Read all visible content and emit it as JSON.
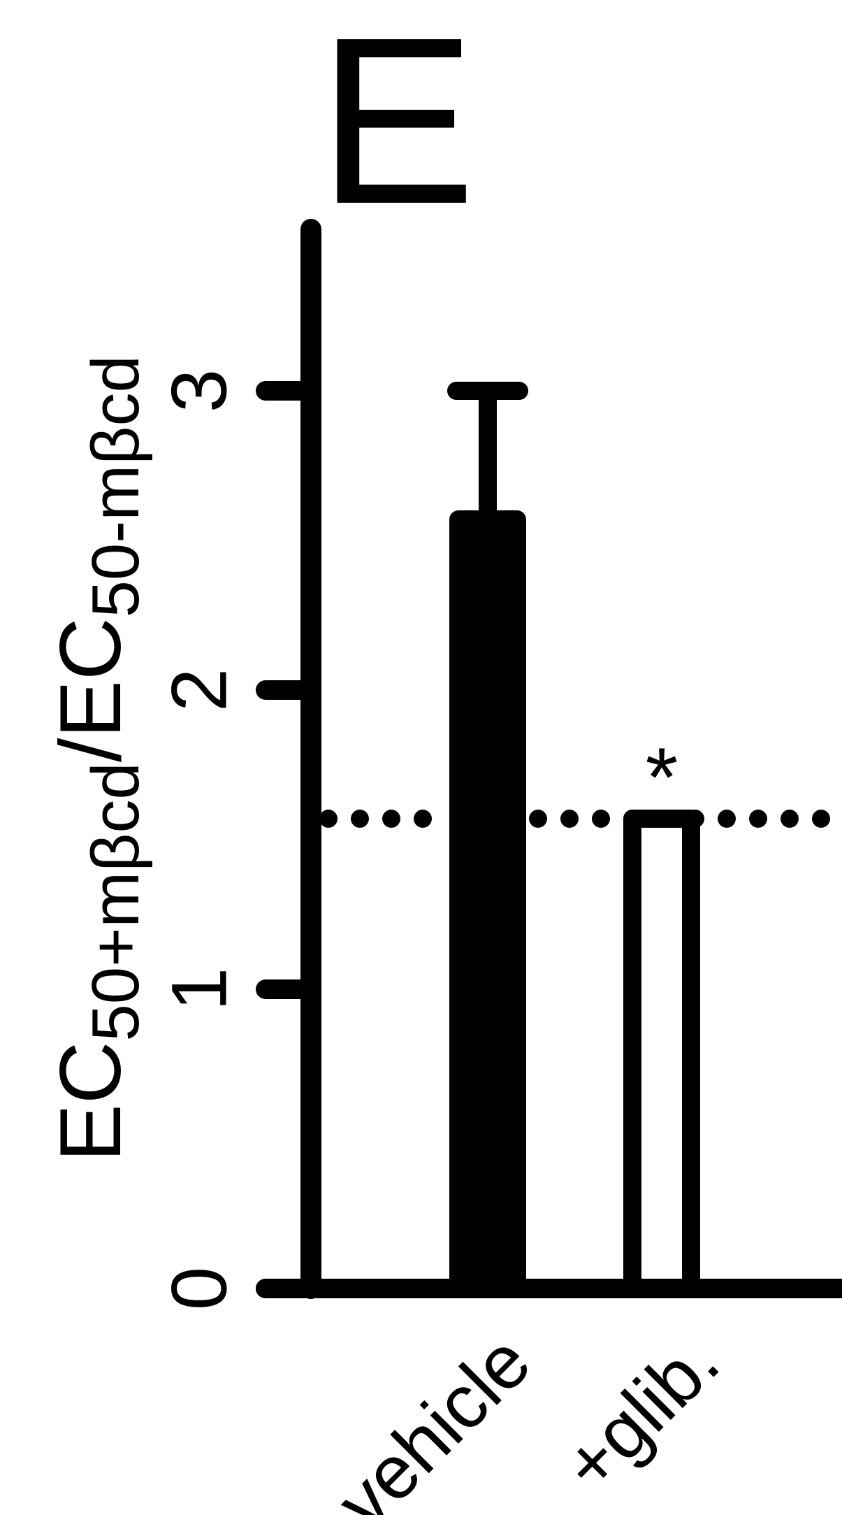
{
  "panel_label": "E",
  "chart_data": {
    "type": "bar",
    "ylabel": {
      "p1": "EC",
      "s1": "50+mβcd",
      "p2": "/EC",
      "s2": "50-mβcd"
    },
    "categories": [
      "vehicle",
      "+glib."
    ],
    "values": [
      2.57,
      1.57
    ],
    "errors": [
      0.43,
      0
    ],
    "fills": [
      "#000000",
      "#ffffff"
    ],
    "significance": [
      "",
      "*"
    ],
    "reference_line": 1.57,
    "ylim": [
      0,
      3
    ],
    "yticks": [
      {
        "v": 0,
        "label": "0"
      },
      {
        "v": 1,
        "label": "1"
      },
      {
        "v": 2,
        "label": "2"
      },
      {
        "v": 3,
        "label": "3"
      }
    ]
  }
}
